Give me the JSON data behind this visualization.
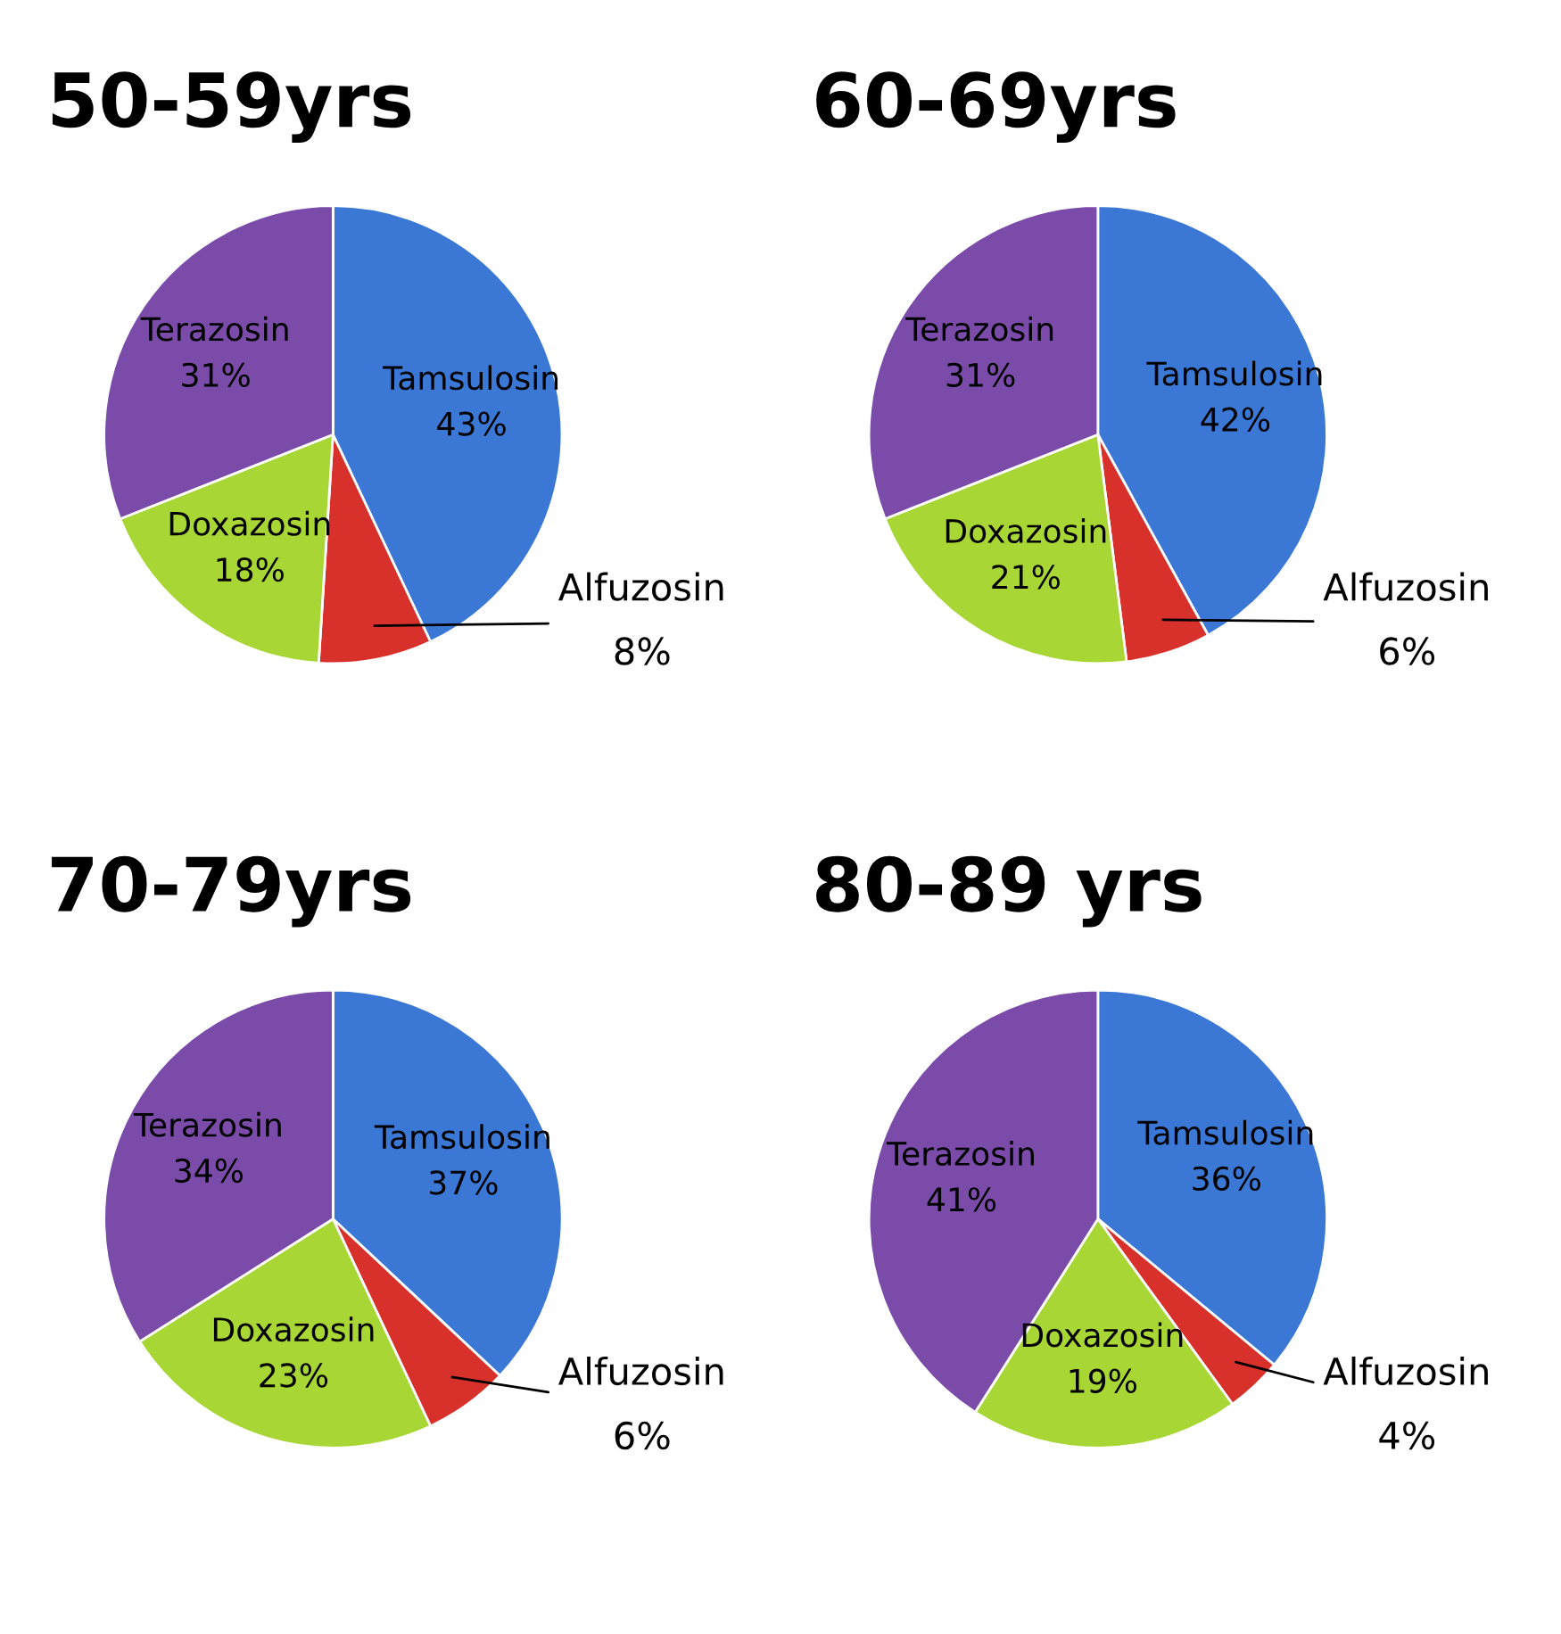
{
  "chart_data": [
    {
      "type": "pie",
      "title": "50-59yrs",
      "categories": [
        "Tamsulosin",
        "Alfuzosin",
        "Doxazosin",
        "Terazosin"
      ],
      "values": [
        43,
        8,
        18,
        31
      ],
      "value_labels": [
        "43%",
        "8%",
        "18%",
        "31%"
      ],
      "colors": [
        "#3b78d6",
        "#d8302a",
        "#a8d635",
        "#7b4ba9"
      ]
    },
    {
      "type": "pie",
      "title": "60-69yrs",
      "categories": [
        "Tamsulosin",
        "Alfuzosin",
        "Doxazosin",
        "Terazosin"
      ],
      "values": [
        42,
        6,
        21,
        31
      ],
      "value_labels": [
        "42%",
        "6%",
        "21%",
        "31%"
      ],
      "colors": [
        "#3b78d6",
        "#d8302a",
        "#a8d635",
        "#7b4ba9"
      ]
    },
    {
      "type": "pie",
      "title": "70-79yrs",
      "categories": [
        "Tamsulosin",
        "Alfuzosin",
        "Doxazosin",
        "Terazosin"
      ],
      "values": [
        37,
        6,
        23,
        34
      ],
      "value_labels": [
        "37%",
        "6%",
        "23%",
        "34%"
      ],
      "colors": [
        "#3b78d6",
        "#d8302a",
        "#a8d635",
        "#7b4ba9"
      ]
    },
    {
      "type": "pie",
      "title": "80-89 yrs",
      "categories": [
        "Tamsulosin",
        "Alfuzosin",
        "Doxazosin",
        "Terazosin"
      ],
      "values": [
        36,
        4,
        19,
        41
      ],
      "value_labels": [
        "36%",
        "4%",
        "19%",
        "41%"
      ],
      "colors": [
        "#3b78d6",
        "#d8302a",
        "#a8d635",
        "#7b4ba9"
      ]
    }
  ]
}
